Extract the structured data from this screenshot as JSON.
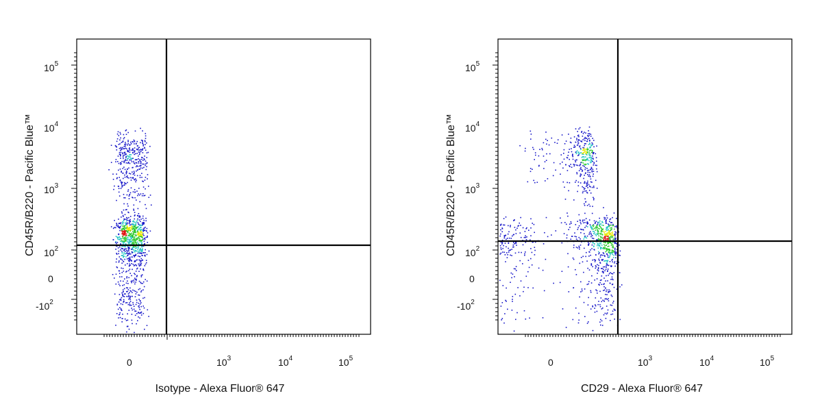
{
  "chart_data": [
    {
      "type": "scatter",
      "subtype": "flow-cytometry-density-dot-plot",
      "xlabel": "Isotype - Alexa Fluor® 647",
      "ylabel": "CD45R/B220 - Pacific Blue™",
      "xscale": "biexponential",
      "yscale": "biexponential",
      "x_ticks": [
        "0",
        "10^3",
        "10^4",
        "10^5"
      ],
      "y_ticks": [
        "10^5",
        "10^4",
        "10^3",
        "10^2",
        "0",
        "-10^2"
      ],
      "gate": {
        "x": 150,
        "y": 150
      },
      "populations": [
        {
          "name": "",
          "x_center": 0,
          "y_center": 30,
          "x_spread": 60,
          "y_spread": 60,
          "relative_density": 1.0
        },
        {
          "name": "",
          "x_center": 0,
          "y_center": 500,
          "x_spread": 70,
          "y_spread": 1500,
          "relative_density": 0.6
        }
      ]
    },
    {
      "type": "scatter",
      "subtype": "flow-cytometry-density-dot-plot",
      "xlabel": "CD29 - Alexa Fluor® 647",
      "ylabel": "CD45R/B220 - Pacific Blue™",
      "xscale": "biexponential",
      "yscale": "biexponential",
      "x_ticks": [
        "0",
        "10^3",
        "10^4",
        "10^5"
      ],
      "y_ticks": [
        "10^5",
        "10^4",
        "10^3",
        "10^2",
        "0",
        "-10^2"
      ],
      "gate": {
        "x": 500,
        "y": 200
      },
      "populations": [
        {
          "name": "",
          "x_center": 900,
          "y_center": 30,
          "x_spread": 2500,
          "y_spread": 60,
          "relative_density": 1.0
        },
        {
          "name": "",
          "x_center": 300,
          "y_center": 800,
          "x_spread": 400,
          "y_spread": 1500,
          "relative_density": 0.55
        }
      ]
    }
  ],
  "colors": {
    "density_low": "#1515c8",
    "density_mid": "#22c4c4",
    "density_midhigh": "#2cc82c",
    "density_high": "#e8e800",
    "density_max": "#e01010",
    "axis": "#000000"
  }
}
